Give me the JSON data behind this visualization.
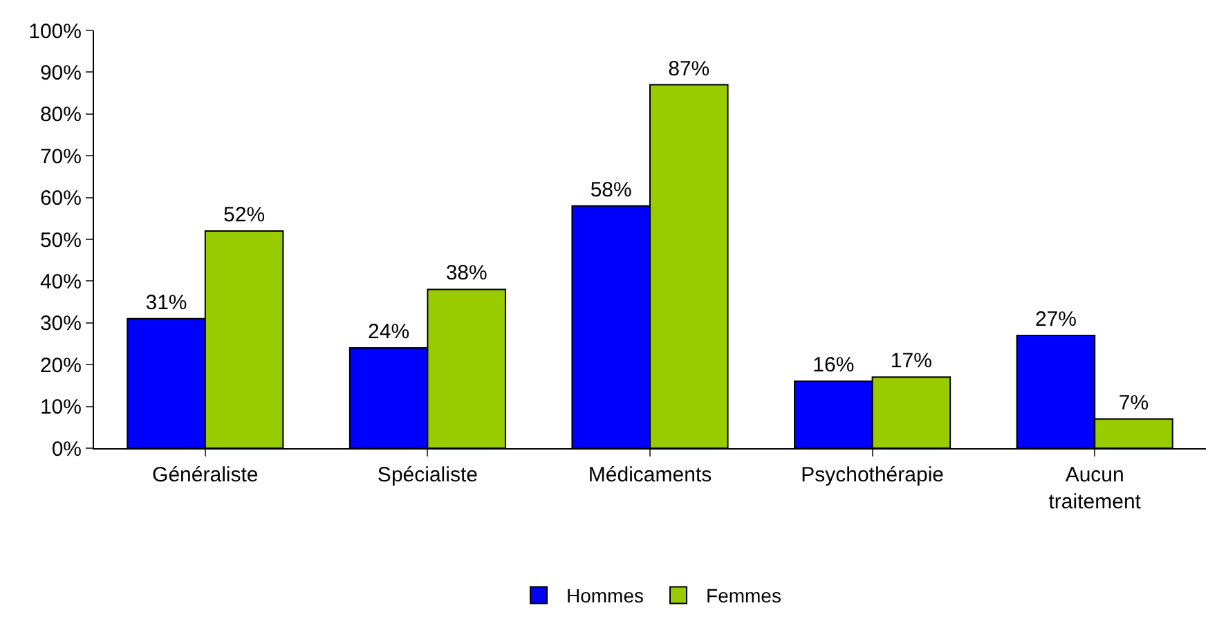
{
  "chart_data": {
    "type": "bar",
    "categories": [
      "Généraliste",
      "Spécialiste",
      "Médicaments",
      "Psychothérapie",
      "Aucun traitement"
    ],
    "series": [
      {
        "name": "Hommes",
        "color": "#0000ff",
        "values": [
          31,
          24,
          58,
          16,
          27
        ],
        "value_labels": [
          "31%",
          "24%",
          "58%",
          "16%",
          "27%"
        ]
      },
      {
        "name": "Femmes",
        "color": "#99cc00",
        "values": [
          52,
          38,
          87,
          17,
          7
        ],
        "value_labels": [
          "52%",
          "38%",
          "87%",
          "17%",
          "7%"
        ]
      }
    ],
    "ylim": [
      0,
      100
    ],
    "yticks": [
      {
        "value": 0,
        "label": "0%"
      },
      {
        "value": 10,
        "label": "10%"
      },
      {
        "value": 20,
        "label": "20%"
      },
      {
        "value": 30,
        "label": "30%"
      },
      {
        "value": 40,
        "label": "40%"
      },
      {
        "value": 50,
        "label": "50%"
      },
      {
        "value": 60,
        "label": "60%"
      },
      {
        "value": 70,
        "label": "70%"
      },
      {
        "value": 80,
        "label": "80%"
      },
      {
        "value": 90,
        "label": "90%"
      },
      {
        "value": 100,
        "label": "100%"
      }
    ],
    "grid": false,
    "legend": "bottom"
  }
}
